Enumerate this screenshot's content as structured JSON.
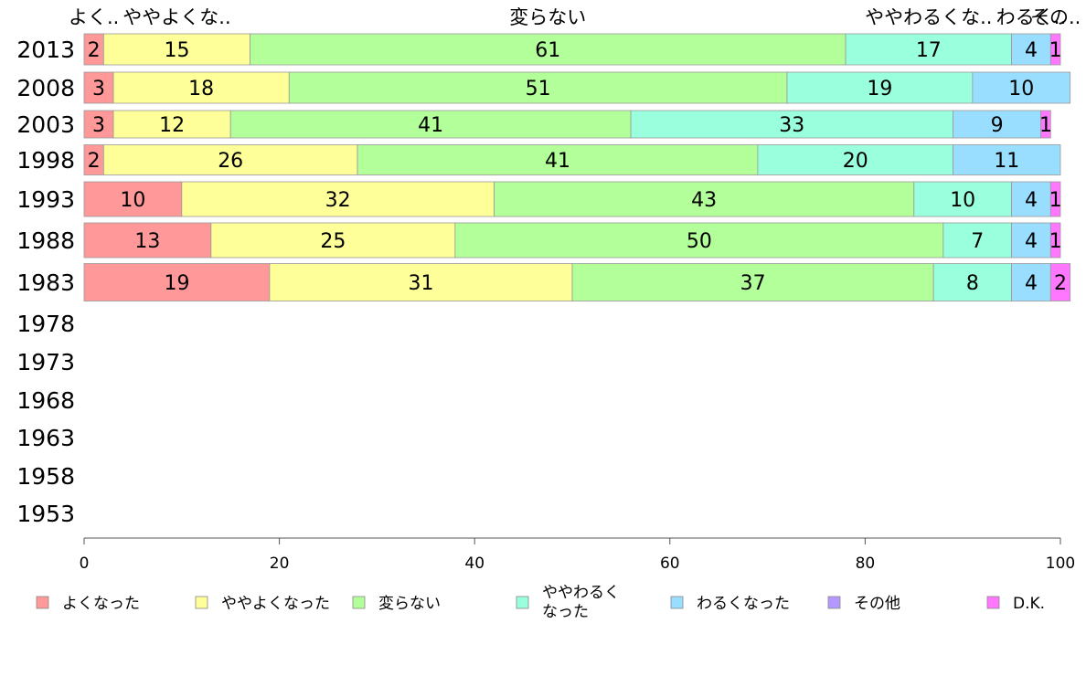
{
  "chart_data": {
    "type": "bar",
    "orientation": "horizontal",
    "stacked": true,
    "categories": [
      "2013",
      "2008",
      "2003",
      "1998",
      "1993",
      "1988",
      "1983",
      "1978",
      "1973",
      "1968",
      "1963",
      "1958",
      "1953"
    ],
    "series": [
      {
        "name": "よくなった",
        "color": "#ff9999",
        "values": [
          2,
          3,
          3,
          2,
          10,
          13,
          19,
          null,
          null,
          null,
          null,
          null,
          null
        ]
      },
      {
        "name": "ややよくなった",
        "color": "#ffff99",
        "values": [
          15,
          18,
          12,
          26,
          32,
          25,
          31,
          null,
          null,
          null,
          null,
          null,
          null
        ]
      },
      {
        "name": "変らない",
        "color": "#b3ff99",
        "values": [
          61,
          51,
          41,
          41,
          43,
          50,
          37,
          null,
          null,
          null,
          null,
          null,
          null
        ]
      },
      {
        "name": "ややわるくなった",
        "color": "#99ffdd",
        "values": [
          17,
          19,
          33,
          20,
          10,
          7,
          8,
          null,
          null,
          null,
          null,
          null,
          null
        ]
      },
      {
        "name": "わるくなった",
        "color": "#99ddff",
        "values": [
          4,
          10,
          9,
          11,
          4,
          4,
          4,
          null,
          null,
          null,
          null,
          null,
          null
        ]
      },
      {
        "name": "その他",
        "color": "#b399ff",
        "values": [
          0,
          0,
          0,
          0,
          0,
          0,
          0,
          null,
          null,
          null,
          null,
          null,
          null
        ]
      },
      {
        "name": "D.K.",
        "color": "#ff77ff",
        "values": [
          1,
          0,
          1,
          0,
          1,
          1,
          2,
          null,
          null,
          null,
          null,
          null,
          null
        ]
      }
    ],
    "top_labels": [
      {
        "text": "よく..",
        "at": 1
      },
      {
        "text": "ややよくな..",
        "at": 9.5
      },
      {
        "text": "変らない",
        "at": 47.5
      },
      {
        "text": "ややわるくな..",
        "at": 86.5
      },
      {
        "text": "わるく..",
        "at": 97
      },
      {
        "text": "その..",
        "at": 99.5
      }
    ],
    "xlim": [
      0,
      100
    ],
    "xticks": [
      0,
      20,
      40,
      60,
      80,
      100
    ],
    "legend_labels": [
      "よくなった",
      "ややよくなった",
      "変らない",
      "ややわるく\nなった",
      "わるくなった",
      "その他",
      "D.K."
    ],
    "legend_position": "bottom",
    "grid": false
  }
}
